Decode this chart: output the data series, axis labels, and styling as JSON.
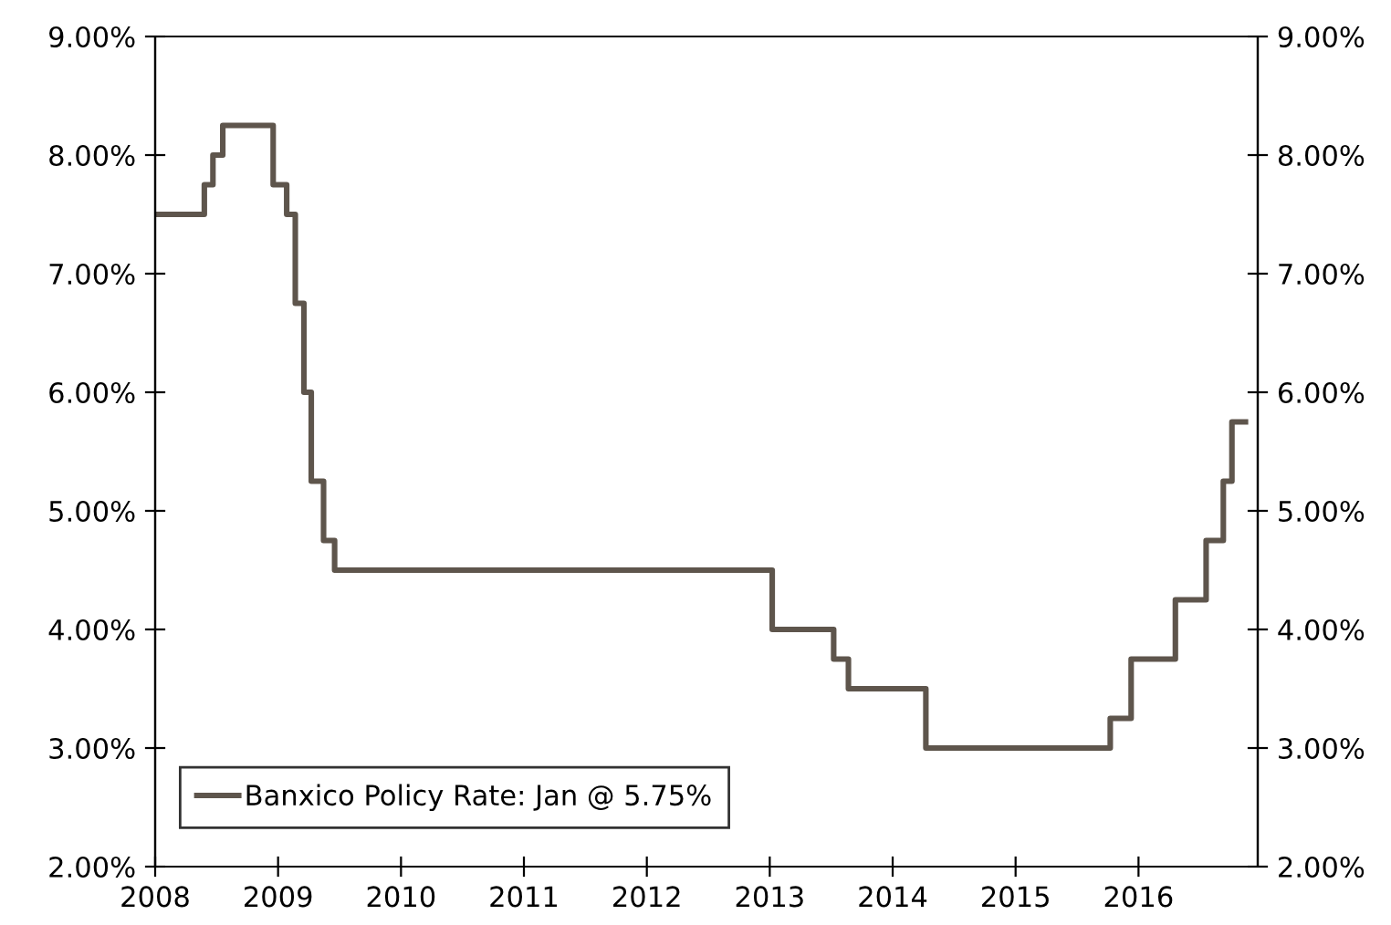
{
  "chart_data": {
    "type": "step",
    "legend": "bottom left",
    "grid": false,
    "marker": "none",
    "line_style": "solid",
    "xlim": [
      2008,
      2016.97
    ],
    "xticks": [
      2008,
      2009,
      2010,
      2011,
      2012,
      2013,
      2014,
      2015,
      2016
    ],
    "ylim": [
      2,
      9
    ],
    "yticks": [
      {
        "value": 2,
        "label": "2.00%"
      },
      {
        "value": 3,
        "label": "3.00%"
      },
      {
        "value": 4,
        "label": "4.00%"
      },
      {
        "value": 5,
        "label": "5.00%"
      },
      {
        "value": 6,
        "label": "6.00%"
      },
      {
        "value": 7,
        "label": "7.00%"
      },
      {
        "value": 8,
        "label": "8.00%"
      },
      {
        "value": 9,
        "label": "9.00%"
      }
    ],
    "y2lim": [
      2,
      9
    ],
    "y2ticks": [
      {
        "value": 2,
        "label": "2.00%"
      },
      {
        "value": 3,
        "label": "3.00%"
      },
      {
        "value": 4,
        "label": "4.00%"
      },
      {
        "value": 5,
        "label": "5.00%"
      },
      {
        "value": 6,
        "label": "6.00%"
      },
      {
        "value": 7,
        "label": "7.00%"
      },
      {
        "value": 8,
        "label": "8.00%"
      },
      {
        "value": 9,
        "label": "9.00%"
      }
    ],
    "series": [
      {
        "name": "Banxico Policy Rate: Jan @ 5.75%",
        "color": "#5e554c",
        "x": [
          2008.0,
          2008.4,
          2008.47,
          2008.55,
          2008.96,
          2009.07,
          2009.14,
          2009.21,
          2009.27,
          2009.37,
          2009.46,
          2013.02,
          2013.52,
          2013.64,
          2014.27,
          2015.77,
          2015.94,
          2016.3,
          2016.55,
          2016.69,
          2016.76,
          2016.87
        ],
        "values": [
          7.5,
          7.75,
          8.0,
          8.25,
          7.75,
          7.5,
          6.75,
          6.0,
          5.25,
          4.75,
          4.5,
          4.0,
          3.75,
          3.5,
          3.0,
          3.25,
          3.75,
          4.25,
          4.75,
          5.25,
          5.75,
          5.75
        ]
      }
    ]
  }
}
